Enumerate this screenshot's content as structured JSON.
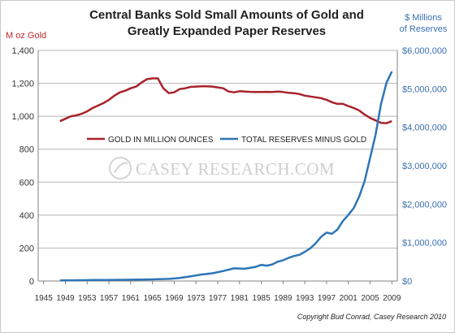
{
  "title_line1": "Central Banks Sold Small Amounts of Gold and",
  "title_line2": "Greatly Expanded Paper Reserves",
  "left_unit": "M oz Gold",
  "right_unit_line1": "$ Millions",
  "right_unit_line2": "of Reserves",
  "watermark": "CASEY RESEARCH.COM",
  "credit": "Copyright Bud Conrad, Casey Research 2010",
  "colors": {
    "gold": "#a8222a",
    "reserves": "#2e75b6"
  },
  "chart_data": {
    "type": "line",
    "title": "Central Banks Sold Small Amounts of Gold and Greatly Expanded Paper Reserves",
    "x_tick_labels": [
      "1945",
      "1949",
      "1953",
      "1957",
      "1961",
      "1965",
      "1969",
      "1973",
      "1977",
      "1981",
      "1985",
      "1989",
      "1993",
      "1997",
      "2001",
      "2005",
      "2009"
    ],
    "xlim": [
      1944,
      2010
    ],
    "y_left": {
      "label": "M oz Gold",
      "lim": [
        0,
        1400
      ],
      "ticks": [
        "0",
        "200",
        "400",
        "600",
        "800",
        "1,000",
        "1,200",
        "1,400"
      ]
    },
    "y_right": {
      "label": "$ Millions of Reserves",
      "lim": [
        0,
        6000000
      ],
      "ticks": [
        "$0",
        "$1,000,000",
        "$2,000,000",
        "$3,000,000",
        "$4,000,000",
        "$5,000,000",
        "$6,000,000"
      ]
    },
    "legend_position": "center",
    "grid": "horizontal",
    "series": [
      {
        "name": "GOLD IN MILLION OUNCES",
        "axis": "left",
        "x": [
          1948,
          1949,
          1950,
          1951,
          1952,
          1953,
          1954,
          1955,
          1956,
          1957,
          1958,
          1959,
          1960,
          1961,
          1962,
          1963,
          1964,
          1965,
          1966,
          1967,
          1968,
          1969,
          1970,
          1971,
          1972,
          1973,
          1974,
          1975,
          1976,
          1977,
          1978,
          1979,
          1980,
          1981,
          1982,
          1983,
          1984,
          1985,
          1986,
          1987,
          1988,
          1989,
          1990,
          1991,
          1992,
          1993,
          1994,
          1995,
          1996,
          1997,
          1998,
          1999,
          2000,
          2001,
          2002,
          2003,
          2004,
          2005,
          2006,
          2007,
          2008,
          2009
        ],
        "values": [
          970,
          985,
          1000,
          1005,
          1015,
          1030,
          1050,
          1065,
          1080,
          1100,
          1125,
          1145,
          1155,
          1170,
          1180,
          1205,
          1225,
          1230,
          1230,
          1170,
          1140,
          1145,
          1165,
          1170,
          1178,
          1180,
          1182,
          1182,
          1180,
          1175,
          1170,
          1150,
          1145,
          1152,
          1150,
          1148,
          1147,
          1147,
          1148,
          1147,
          1150,
          1147,
          1142,
          1140,
          1135,
          1125,
          1120,
          1115,
          1110,
          1100,
          1085,
          1075,
          1075,
          1062,
          1050,
          1035,
          1010,
          990,
          975,
          960,
          958,
          970
        ]
      },
      {
        "name": "TOTAL RESERVES MINUS GOLD",
        "axis": "right",
        "x": [
          1948,
          1950,
          1952,
          1954,
          1956,
          1958,
          1960,
          1962,
          1964,
          1966,
          1968,
          1970,
          1972,
          1974,
          1976,
          1978,
          1980,
          1982,
          1984,
          1985,
          1986,
          1987,
          1988,
          1989,
          1990,
          1991,
          1992,
          1993,
          1994,
          1995,
          1996,
          1997,
          1998,
          1999,
          2000,
          2001,
          2002,
          2003,
          2004,
          2005,
          2006,
          2007,
          2008,
          2009
        ],
        "values": [
          15000,
          18000,
          22000,
          25000,
          28000,
          30000,
          32000,
          35000,
          40000,
          48000,
          55000,
          80000,
          120000,
          170000,
          200000,
          260000,
          330000,
          320000,
          370000,
          420000,
          400000,
          430000,
          500000,
          540000,
          600000,
          650000,
          680000,
          760000,
          850000,
          980000,
          1150000,
          1260000,
          1230000,
          1340000,
          1560000,
          1720000,
          1900000,
          2200000,
          2600000,
          3200000,
          3800000,
          4600000,
          5150000,
          5450000
        ]
      }
    ]
  }
}
